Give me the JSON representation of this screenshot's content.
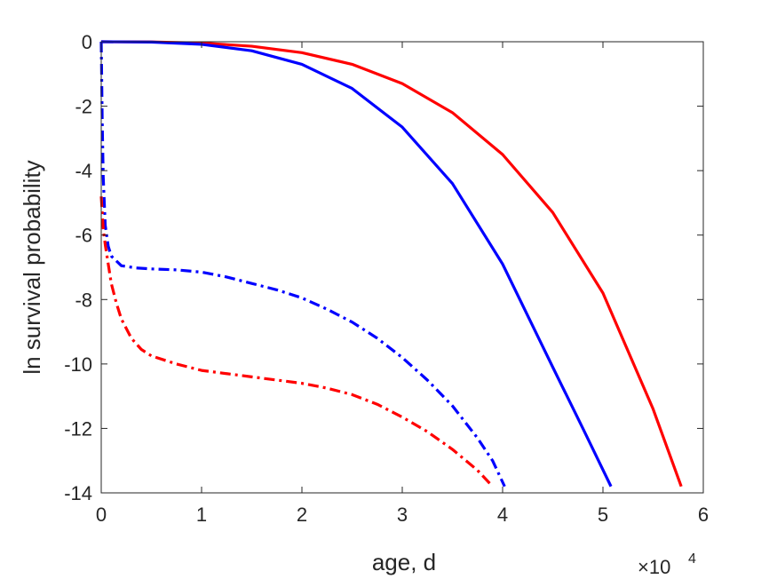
{
  "chart_data": {
    "type": "line",
    "title": "",
    "xlabel": "age, d",
    "ylabel": "ln survival probability",
    "x_multiplier_label": "×10",
    "x_multiplier_exponent": "4",
    "xlim": [
      0,
      60000
    ],
    "ylim": [
      -14,
      0
    ],
    "xticks": [
      0,
      10000,
      20000,
      30000,
      40000,
      50000,
      60000
    ],
    "xtick_labels": [
      "0",
      "1",
      "2",
      "3",
      "4",
      "5",
      "6"
    ],
    "yticks": [
      0,
      -2,
      -4,
      -6,
      -8,
      -10,
      -12,
      -14
    ],
    "ytick_labels": [
      "0",
      "-2",
      "-4",
      "-6",
      "-8",
      "-10",
      "-12",
      "-14"
    ],
    "grid": false,
    "legend": "none",
    "series": [
      {
        "color": "#ff0000",
        "style": "solid",
        "x": [
          0,
          5000,
          10000,
          15000,
          20000,
          25000,
          30000,
          35000,
          40000,
          45000,
          50000,
          55000,
          57800
        ],
        "y": [
          0,
          -0.005,
          -0.04,
          -0.14,
          -0.34,
          -0.7,
          -1.3,
          -2.2,
          -3.5,
          -5.3,
          -7.8,
          -11.4,
          -13.8
        ]
      },
      {
        "color": "#0000ff",
        "style": "solid",
        "x": [
          0,
          5000,
          10000,
          15000,
          20000,
          25000,
          30000,
          35000,
          40000,
          45000,
          48000,
          50800
        ],
        "y": [
          0,
          -0.01,
          -0.08,
          -0.28,
          -0.7,
          -1.45,
          -2.65,
          -4.4,
          -6.9,
          -10.1,
          -12.0,
          -13.8
        ]
      },
      {
        "color": "#0000ff",
        "style": "dashdot",
        "x": [
          0,
          50,
          100,
          200,
          400,
          700,
          1000,
          2000,
          3500,
          5000,
          7500,
          10000,
          12500,
          15000,
          17500,
          20000,
          22500,
          25000,
          27500,
          30000,
          32500,
          35000,
          37500,
          39000,
          40200
        ],
        "y": [
          0,
          -1.2,
          -2.5,
          -4.2,
          -5.7,
          -6.35,
          -6.65,
          -6.95,
          -7.02,
          -7.05,
          -7.08,
          -7.15,
          -7.3,
          -7.5,
          -7.7,
          -7.95,
          -8.3,
          -8.7,
          -9.2,
          -9.8,
          -10.5,
          -11.3,
          -12.3,
          -13.0,
          -13.8
        ]
      },
      {
        "color": "#ff0000",
        "style": "dashdot",
        "x": [
          0,
          100,
          200,
          400,
          700,
          1000,
          1500,
          2000,
          3000,
          4000,
          5000,
          7500,
          10000,
          12500,
          15000,
          17500,
          20000,
          22500,
          25000,
          27500,
          30000,
          32500,
          35000,
          37500,
          39000
        ],
        "y": [
          -4.8,
          -5.3,
          -5.8,
          -6.3,
          -6.9,
          -7.5,
          -8.1,
          -8.6,
          -9.2,
          -9.55,
          -9.75,
          -10.0,
          -10.2,
          -10.3,
          -10.4,
          -10.5,
          -10.6,
          -10.75,
          -10.95,
          -11.25,
          -11.65,
          -12.1,
          -12.65,
          -13.3,
          -13.8
        ]
      }
    ]
  }
}
